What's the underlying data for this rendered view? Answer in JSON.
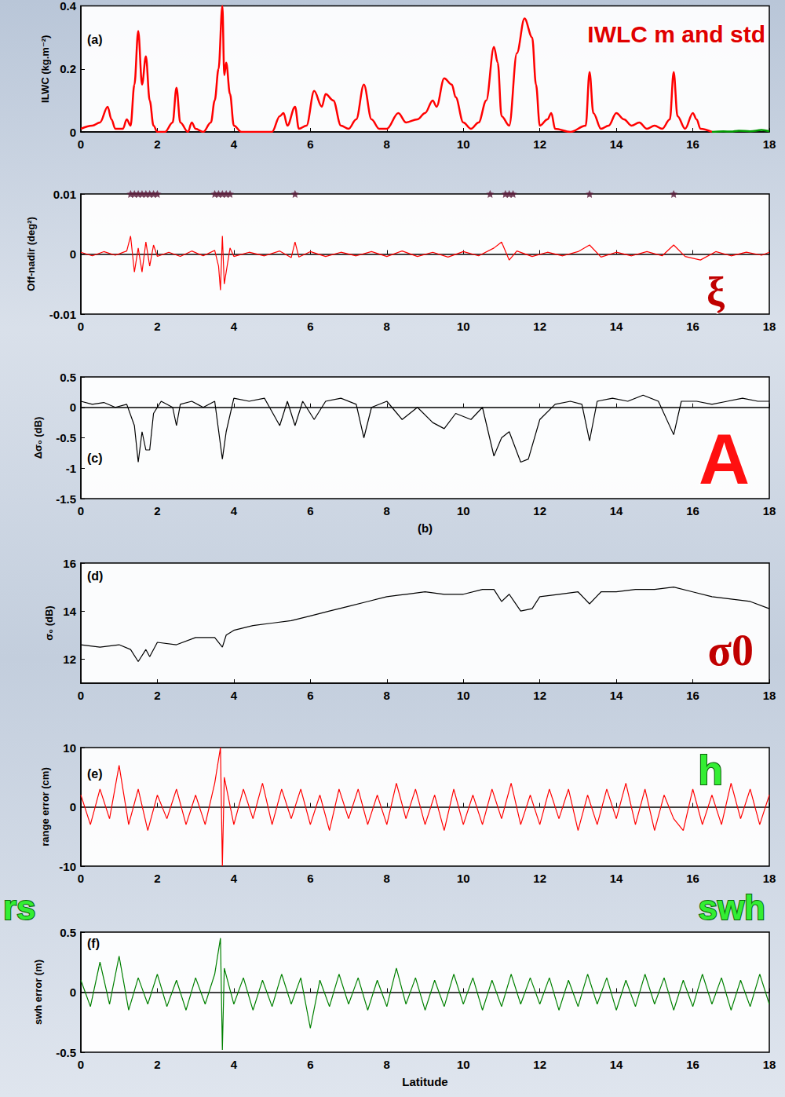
{
  "chart_data": [
    {
      "type": "line",
      "panel_label": "(a)",
      "ylabel": "ILWC (kg.m⁻²)",
      "annotations": [
        "IWLC m and std"
      ],
      "xlim": [
        0,
        18
      ],
      "xticks": [
        0,
        2,
        4,
        6,
        8,
        10,
        12,
        14,
        16,
        18
      ],
      "ylim": [
        0,
        0.4
      ],
      "yticks": [
        0,
        0.2,
        0.4
      ],
      "grid": false,
      "series": [
        {
          "color": "#ff0000",
          "x": [
            0,
            0.3,
            0.5,
            0.7,
            0.8,
            0.9,
            1.1,
            1.2,
            1.3,
            1.4,
            1.5,
            1.6,
            1.7,
            1.8,
            1.9,
            2.0,
            2.2,
            2.4,
            2.5,
            2.6,
            2.8,
            2.9,
            3.0,
            3.2,
            3.4,
            3.5,
            3.6,
            3.7,
            3.75,
            3.8,
            3.9,
            4.0,
            4.2,
            5.0,
            5.2,
            5.3,
            5.4,
            5.6,
            5.7,
            5.9,
            6.1,
            6.3,
            6.4,
            6.6,
            6.8,
            7.0,
            7.2,
            7.4,
            7.6,
            7.8,
            8.0,
            8.3,
            8.5,
            8.8,
            9.0,
            9.2,
            9.3,
            9.5,
            9.7,
            9.8,
            10.0,
            10.2,
            10.4,
            10.6,
            10.8,
            10.9,
            11.0,
            11.2,
            11.4,
            11.6,
            11.8,
            11.9,
            12.0,
            12.2,
            12.3,
            12.4,
            12.8,
            13.2,
            13.3,
            13.4,
            13.6,
            13.8,
            14.0,
            14.2,
            14.4,
            14.6,
            14.8,
            15.0,
            15.2,
            15.4,
            15.5,
            15.6,
            15.8,
            16.0,
            16.1,
            16.2,
            16.5
          ],
          "values": [
            0.01,
            0.02,
            0.03,
            0.08,
            0.04,
            0.01,
            0.01,
            0.04,
            0.02,
            0.15,
            0.32,
            0.15,
            0.24,
            0.1,
            0.02,
            0.0,
            0.0,
            0.03,
            0.14,
            0.03,
            0.0,
            0.03,
            0.01,
            0.0,
            0.03,
            0.1,
            0.2,
            0.4,
            0.18,
            0.22,
            0.12,
            0.02,
            0.0,
            0.0,
            0.05,
            0.06,
            0.02,
            0.08,
            0.01,
            0.02,
            0.13,
            0.08,
            0.12,
            0.1,
            0.02,
            0.01,
            0.04,
            0.15,
            0.04,
            0.01,
            0.01,
            0.06,
            0.03,
            0.04,
            0.06,
            0.1,
            0.08,
            0.17,
            0.15,
            0.11,
            0.03,
            0.01,
            0.03,
            0.1,
            0.27,
            0.22,
            0.05,
            0.02,
            0.25,
            0.36,
            0.3,
            0.15,
            0.02,
            0.04,
            0.06,
            0.01,
            0.0,
            0.02,
            0.19,
            0.06,
            0.01,
            0.02,
            0.06,
            0.04,
            0.02,
            0.03,
            0.01,
            0.02,
            0.01,
            0.04,
            0.19,
            0.05,
            0.01,
            0.06,
            0.04,
            0.01,
            0.0
          ]
        },
        {
          "color": "#009900",
          "x": [
            16.5,
            16.8,
            17.0,
            17.2,
            17.5,
            17.8,
            18.0
          ],
          "values": [
            0.0,
            0.002,
            0.001,
            0.004,
            0.002,
            0.006,
            0.002
          ]
        }
      ]
    },
    {
      "type": "line",
      "ylabel": "Off-nadir (deg²)",
      "annotations": [
        "ξ"
      ],
      "xlim": [
        0,
        18
      ],
      "xticks": [
        0,
        2,
        4,
        6,
        8,
        10,
        12,
        14,
        16,
        18
      ],
      "ylim": [
        -0.01,
        0.01
      ],
      "yticks": [
        -0.01,
        0,
        0.01
      ],
      "grid": false,
      "series": [
        {
          "color": "#ff0000",
          "x": [
            0,
            0.3,
            0.6,
            0.9,
            1.2,
            1.3,
            1.4,
            1.5,
            1.6,
            1.7,
            1.8,
            1.9,
            2.0,
            2.3,
            2.6,
            2.9,
            3.2,
            3.5,
            3.6,
            3.65,
            3.7,
            3.75,
            3.8,
            3.9,
            4.0,
            4.4,
            4.8,
            5.2,
            5.5,
            5.6,
            5.7,
            6.0,
            6.4,
            6.8,
            7.2,
            7.6,
            8.0,
            8.4,
            8.8,
            9.2,
            9.6,
            10.0,
            10.4,
            10.8,
            11.0,
            11.2,
            11.4,
            11.8,
            12.2,
            12.6,
            13.0,
            13.3,
            13.6,
            14.0,
            14.4,
            14.8,
            15.2,
            15.5,
            15.8,
            16.2,
            16.6,
            17.0,
            17.4,
            17.8,
            18.0
          ],
          "values": [
            0.0003,
            -0.0003,
            0.0004,
            -0.0002,
            0.0005,
            0.003,
            -0.003,
            0.001,
            -0.003,
            0.002,
            -0.002,
            0.0015,
            -0.0004,
            0.0003,
            -0.0004,
            0.0005,
            -0.0003,
            0.0006,
            -0.002,
            -0.006,
            0.003,
            -0.005,
            -0.003,
            0.001,
            -0.0004,
            0.0003,
            -0.0003,
            0.0005,
            -0.0006,
            0.002,
            -0.0005,
            0.0004,
            -0.0004,
            0.0003,
            -0.0003,
            0.0004,
            -0.0004,
            0.0005,
            -0.0004,
            0.0003,
            -0.0005,
            0.0004,
            -0.0003,
            0.001,
            0.002,
            -0.001,
            0.0005,
            -0.0004,
            0.0003,
            -0.0003,
            0.0004,
            0.0015,
            -0.0005,
            0.0003,
            -0.0003,
            0.0004,
            -0.0003,
            0.0015,
            -0.0004,
            -0.001,
            0.0004,
            -0.0003,
            0.0003,
            -0.0002,
            0.0003
          ]
        },
        {
          "type": "scatter",
          "marker": "star",
          "color": "#5a1a3a",
          "x": [
            1.3,
            1.4,
            1.5,
            1.6,
            1.7,
            1.8,
            1.9,
            2.0,
            3.5,
            3.6,
            3.7,
            3.8,
            3.9,
            5.6,
            10.7,
            11.1,
            11.2,
            11.3,
            13.3,
            15.5
          ],
          "values": [
            0.01,
            0.01,
            0.01,
            0.01,
            0.01,
            0.01,
            0.01,
            0.01,
            0.01,
            0.01,
            0.01,
            0.01,
            0.01,
            0.01,
            0.01,
            0.01,
            0.01,
            0.01,
            0.01,
            0.01
          ]
        }
      ]
    },
    {
      "type": "line",
      "panel_label": "(c)",
      "ylabel": "Δσ₀ (dB)",
      "xlabel": "(b)",
      "annotations": [
        "A"
      ],
      "xlim": [
        0,
        18
      ],
      "xticks": [
        0,
        2,
        4,
        6,
        8,
        10,
        12,
        14,
        16,
        18
      ],
      "ylim": [
        -1.5,
        0.5
      ],
      "yticks": [
        -1.5,
        -1,
        -0.5,
        0,
        0.5
      ],
      "grid": false,
      "series": [
        {
          "color": "#000000",
          "x": [
            0,
            0.3,
            0.6,
            0.9,
            1.2,
            1.4,
            1.5,
            1.6,
            1.7,
            1.8,
            1.9,
            2.1,
            2.4,
            2.5,
            2.6,
            2.9,
            3.2,
            3.5,
            3.7,
            3.8,
            4.0,
            4.4,
            4.8,
            5.2,
            5.4,
            5.6,
            5.8,
            6.1,
            6.4,
            6.8,
            7.2,
            7.4,
            7.6,
            8.0,
            8.4,
            8.8,
            9.2,
            9.5,
            9.8,
            10.2,
            10.5,
            10.8,
            11.0,
            11.2,
            11.5,
            11.7,
            12.0,
            12.4,
            12.8,
            13.1,
            13.3,
            13.5,
            13.9,
            14.3,
            14.7,
            15.1,
            15.5,
            15.7,
            16.1,
            16.5,
            16.9,
            17.3,
            17.7,
            18.0
          ],
          "values": [
            0.1,
            0.05,
            0.08,
            0.0,
            0.05,
            -0.3,
            -0.9,
            -0.4,
            -0.7,
            -0.7,
            -0.1,
            0.1,
            0.0,
            -0.3,
            0.05,
            0.1,
            0.0,
            0.1,
            -0.85,
            -0.4,
            0.15,
            0.1,
            0.15,
            -0.3,
            0.1,
            -0.3,
            0.1,
            -0.2,
            0.1,
            0.15,
            0.05,
            -0.5,
            0.0,
            0.1,
            -0.2,
            0.0,
            -0.25,
            -0.35,
            -0.1,
            -0.2,
            0.0,
            -0.8,
            -0.5,
            -0.4,
            -0.9,
            -0.85,
            -0.2,
            0.05,
            0.1,
            0.05,
            -0.55,
            0.1,
            0.15,
            0.1,
            0.2,
            0.1,
            -0.45,
            0.1,
            0.1,
            0.05,
            0.1,
            0.15,
            0.1,
            0.1
          ]
        }
      ]
    },
    {
      "type": "line",
      "panel_label": "(d)",
      "ylabel": "σ₀ (dB)",
      "annotations": [
        "σ0"
      ],
      "xlim": [
        0,
        18
      ],
      "xticks": [
        0,
        2,
        4,
        6,
        8,
        10,
        12,
        14,
        16,
        18
      ],
      "ylim": [
        11,
        16
      ],
      "yticks": [
        12,
        14,
        16
      ],
      "grid": false,
      "series": [
        {
          "color": "#000000",
          "x": [
            0,
            0.5,
            1.0,
            1.3,
            1.5,
            1.7,
            1.8,
            2.0,
            2.5,
            3.0,
            3.5,
            3.7,
            3.8,
            4.0,
            4.5,
            5.0,
            5.5,
            6.0,
            6.5,
            7.0,
            7.5,
            8.0,
            8.5,
            9.0,
            9.5,
            10.0,
            10.5,
            10.8,
            11.0,
            11.2,
            11.5,
            11.8,
            12.0,
            12.5,
            13.0,
            13.3,
            13.6,
            14.0,
            14.5,
            15.0,
            15.5,
            16.0,
            16.5,
            17.0,
            17.5,
            18.0
          ],
          "values": [
            12.6,
            12.5,
            12.6,
            12.4,
            11.9,
            12.4,
            12.1,
            12.7,
            12.6,
            12.9,
            12.9,
            12.5,
            13.0,
            13.2,
            13.4,
            13.5,
            13.6,
            13.8,
            14.0,
            14.2,
            14.4,
            14.6,
            14.7,
            14.8,
            14.7,
            14.7,
            14.9,
            14.9,
            14.4,
            14.7,
            14.0,
            14.1,
            14.6,
            14.7,
            14.8,
            14.3,
            14.8,
            14.8,
            14.9,
            14.9,
            15.0,
            14.8,
            14.6,
            14.5,
            14.4,
            14.1
          ]
        }
      ]
    },
    {
      "type": "line",
      "panel_label": "(e)",
      "ylabel": "range error (cm)",
      "annotations": [
        "h",
        "rs"
      ],
      "xlim": [
        0,
        18
      ],
      "xticks": [
        0,
        2,
        4,
        6,
        8,
        10,
        12,
        14,
        16,
        18
      ],
      "ylim": [
        -10,
        10
      ],
      "yticks": [
        -10,
        0,
        10
      ],
      "grid": false,
      "series": [
        {
          "color": "#ff0000",
          "x": [
            0,
            0.25,
            0.5,
            0.75,
            1,
            1.25,
            1.5,
            1.75,
            2,
            2.25,
            2.5,
            2.75,
            3,
            3.25,
            3.5,
            3.65,
            3.7,
            3.75,
            4,
            4.25,
            4.5,
            4.75,
            5,
            5.25,
            5.5,
            5.75,
            6,
            6.25,
            6.5,
            6.75,
            7,
            7.25,
            7.5,
            7.75,
            8,
            8.25,
            8.5,
            8.75,
            9,
            9.25,
            9.5,
            9.75,
            10,
            10.25,
            10.5,
            10.75,
            11,
            11.25,
            11.5,
            11.75,
            12,
            12.25,
            12.5,
            12.75,
            13,
            13.25,
            13.5,
            13.75,
            14,
            14.25,
            14.5,
            14.75,
            15,
            15.25,
            15.5,
            15.75,
            16,
            16.25,
            16.5,
            16.75,
            17,
            17.25,
            17.5,
            17.75,
            18
          ],
          "values": [
            2,
            -3,
            3,
            -2,
            7,
            -3,
            3,
            -4,
            2,
            -2,
            3,
            -3,
            2,
            -3,
            4,
            10,
            -10,
            5,
            -3,
            3,
            -2,
            4,
            -3,
            3,
            -2,
            3,
            -3,
            2,
            -4,
            3,
            -2,
            3,
            -3,
            2,
            -3,
            4,
            -2,
            3,
            -3,
            2,
            -4,
            3,
            -3,
            2,
            -3,
            3,
            -2,
            4,
            -3,
            2,
            -3,
            3,
            -2,
            3,
            -4,
            2,
            -3,
            3,
            -2,
            4,
            -3,
            3,
            -4,
            2,
            -2,
            -4,
            3,
            -3,
            2,
            -3,
            4,
            -2,
            3,
            -3,
            2
          ]
        }
      ]
    },
    {
      "type": "line",
      "panel_label": "(f)",
      "ylabel": "swh error (m)",
      "xlabel": "Latitude",
      "annotations": [
        "swh"
      ],
      "xlim": [
        0,
        18
      ],
      "xticks": [
        0,
        2,
        4,
        6,
        8,
        10,
        12,
        14,
        16,
        18
      ],
      "ylim": [
        -0.5,
        0.5
      ],
      "yticks": [
        -0.5,
        0,
        0.5
      ],
      "grid": false,
      "series": [
        {
          "color": "#008000",
          "x": [
            0,
            0.25,
            0.5,
            0.75,
            1,
            1.25,
            1.5,
            1.75,
            2,
            2.25,
            2.5,
            2.75,
            3,
            3.25,
            3.5,
            3.65,
            3.7,
            3.75,
            4,
            4.25,
            4.5,
            4.75,
            5,
            5.25,
            5.5,
            5.75,
            6,
            6.25,
            6.5,
            6.75,
            7,
            7.25,
            7.5,
            7.75,
            8,
            8.25,
            8.5,
            8.75,
            9,
            9.25,
            9.5,
            9.75,
            10,
            10.25,
            10.5,
            10.75,
            11,
            11.25,
            11.5,
            11.75,
            12,
            12.25,
            12.5,
            12.75,
            13,
            13.25,
            13.5,
            13.75,
            14,
            14.25,
            14.5,
            14.75,
            15,
            15.25,
            15.5,
            15.75,
            16,
            16.25,
            16.5,
            16.75,
            17,
            17.25,
            17.5,
            17.75,
            18
          ],
          "values": [
            0.1,
            -0.12,
            0.25,
            -0.1,
            0.3,
            -0.15,
            0.12,
            -0.1,
            0.15,
            -0.12,
            0.1,
            -0.15,
            0.12,
            -0.1,
            0.15,
            0.45,
            -0.48,
            0.2,
            -0.1,
            0.12,
            -0.15,
            0.1,
            -0.12,
            0.15,
            -0.1,
            0.12,
            -0.3,
            0.1,
            -0.12,
            0.15,
            -0.1,
            0.12,
            -0.15,
            0.1,
            -0.12,
            0.2,
            -0.1,
            0.12,
            -0.15,
            0.1,
            -0.12,
            0.15,
            -0.1,
            0.12,
            -0.15,
            0.1,
            -0.12,
            0.15,
            -0.1,
            0.12,
            -0.1,
            0.12,
            -0.15,
            0.1,
            -0.12,
            0.15,
            -0.1,
            0.12,
            -0.15,
            0.1,
            -0.12,
            0.15,
            -0.1,
            0.12,
            -0.15,
            0.1,
            -0.12,
            0.15,
            -0.1,
            0.12,
            -0.15,
            0.1,
            -0.12,
            0.15,
            -0.1
          ]
        }
      ]
    }
  ]
}
